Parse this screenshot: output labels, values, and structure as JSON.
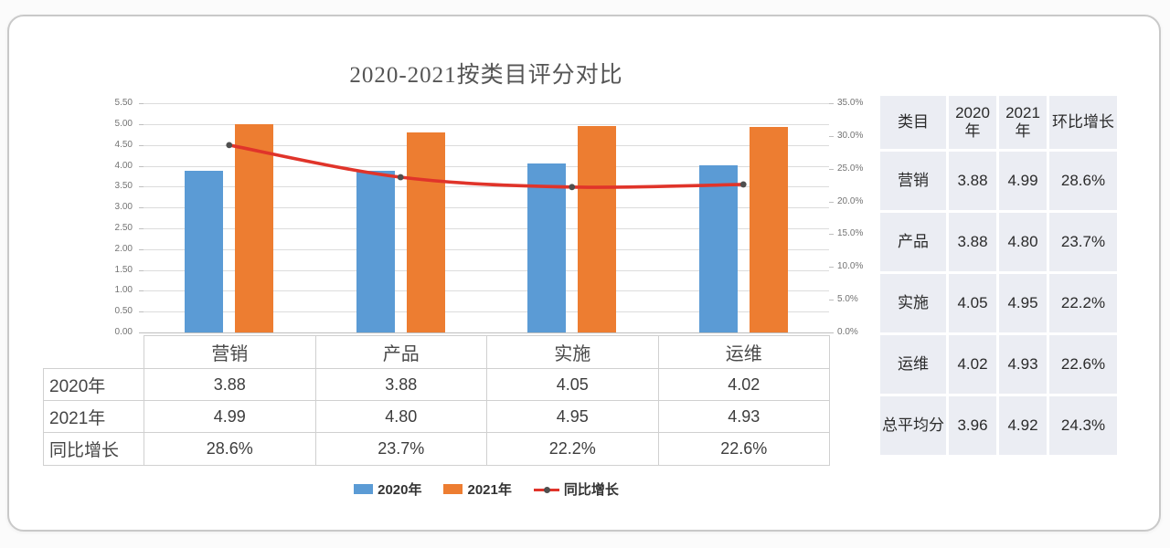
{
  "chart_title": "2020-2021按类目评分对比",
  "chart_data": {
    "type": "bar",
    "subtype": "grouped-bars-with-line-combo",
    "title": "2020-2021按类目评分对比",
    "categories": [
      "营销",
      "产品",
      "实施",
      "运维"
    ],
    "series": [
      {
        "name": "2020年",
        "type": "bar",
        "axis": "left",
        "color": "#5b9bd5",
        "values": [
          3.88,
          3.88,
          4.05,
          4.02
        ]
      },
      {
        "name": "2021年",
        "type": "bar",
        "axis": "left",
        "color": "#ed7d31",
        "values": [
          4.99,
          4.8,
          4.95,
          4.93
        ]
      },
      {
        "name": "同比增长",
        "type": "line",
        "axis": "right",
        "color": "#e0342a",
        "marker_color": "#4f4f4f",
        "smoothed": true,
        "values": [
          28.6,
          23.7,
          22.2,
          22.6
        ],
        "unit": "%"
      }
    ],
    "left_axis": {
      "min": 0,
      "max": 5.5,
      "step": 0.5,
      "format": "two-decimals"
    },
    "right_axis": {
      "min": 0,
      "max": 35,
      "step": 5,
      "format": "percent-one-decimal"
    },
    "grid": true,
    "legend_position": "bottom"
  },
  "data_table": {
    "columns": [
      "营销",
      "产品",
      "实施",
      "运维"
    ],
    "rows": [
      {
        "label": "2020年",
        "values": [
          "3.88",
          "3.88",
          "4.05",
          "4.02"
        ]
      },
      {
        "label": "2021年",
        "values": [
          "4.99",
          "4.80",
          "4.95",
          "4.93"
        ]
      },
      {
        "label": "同比增长",
        "values": [
          "28.6%",
          "23.7%",
          "22.2%",
          "22.6%"
        ]
      }
    ]
  },
  "legend": {
    "items": [
      {
        "label": "2020年",
        "kind": "bar",
        "color": "#5b9bd5"
      },
      {
        "label": "2021年",
        "kind": "bar",
        "color": "#ed7d31"
      },
      {
        "label": "同比增长",
        "kind": "line",
        "color": "#e0342a",
        "dot_color": "#4f4f4f"
      }
    ]
  },
  "side_table": {
    "headers": [
      "类目",
      "2020年",
      "2021年",
      "环比增长"
    ],
    "rows": [
      [
        "营销",
        "3.88",
        "4.99",
        "28.6%"
      ],
      [
        "产品",
        "3.88",
        "4.80",
        "23.7%"
      ],
      [
        "实施",
        "4.05",
        "4.95",
        "22.2%"
      ],
      [
        "运维",
        "4.02",
        "4.93",
        "22.6%"
      ],
      [
        "总平均分",
        "3.96",
        "4.92",
        "24.3%"
      ]
    ]
  },
  "colors": {
    "grid": "#dcdcdc",
    "axis_line": "#bfbfbf",
    "axis_text": "#737373",
    "table_border": "#d0d0d0",
    "side_cell_bg": "#ebedf3",
    "card_border": "#c9c9c9"
  }
}
